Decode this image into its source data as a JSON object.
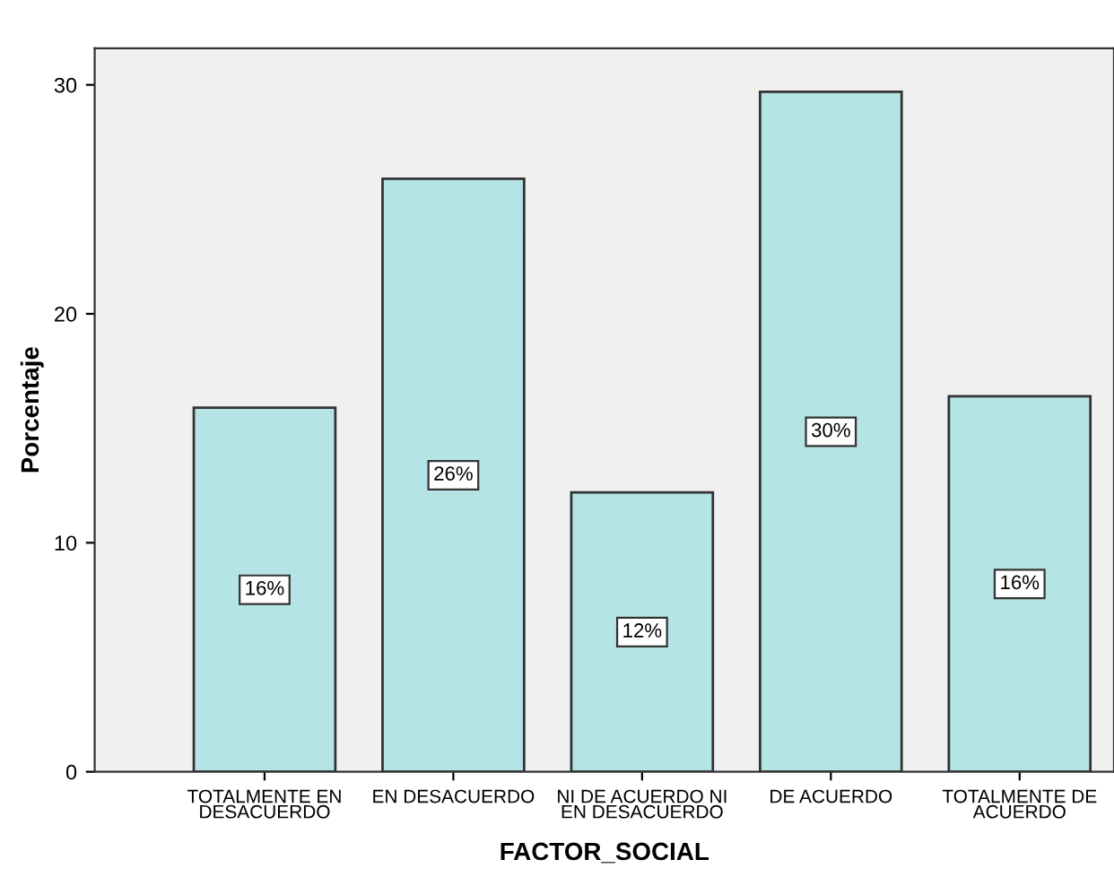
{
  "chart_data": {
    "type": "bar",
    "categories": [
      "TOTALMENTE EN\nDESACUERDO",
      "EN DESACUERDO",
      "NI DE ACUERDO NI\nEN DESACUERDO",
      "DE ACUERDO",
      "TOTALMENTE DE\nACUERDO"
    ],
    "values": [
      15.9,
      25.9,
      12.2,
      29.7,
      16.4
    ],
    "value_labels": [
      "16%",
      "26%",
      "12%",
      "30%",
      "16%"
    ],
    "color": "#b4e4e6",
    "xlabel": "FACTOR_SOCIAL",
    "ylabel": "Porcentaje",
    "ylim": [
      0,
      31.6
    ],
    "yticks": [
      0,
      10,
      20,
      30
    ],
    "grid": false
  }
}
